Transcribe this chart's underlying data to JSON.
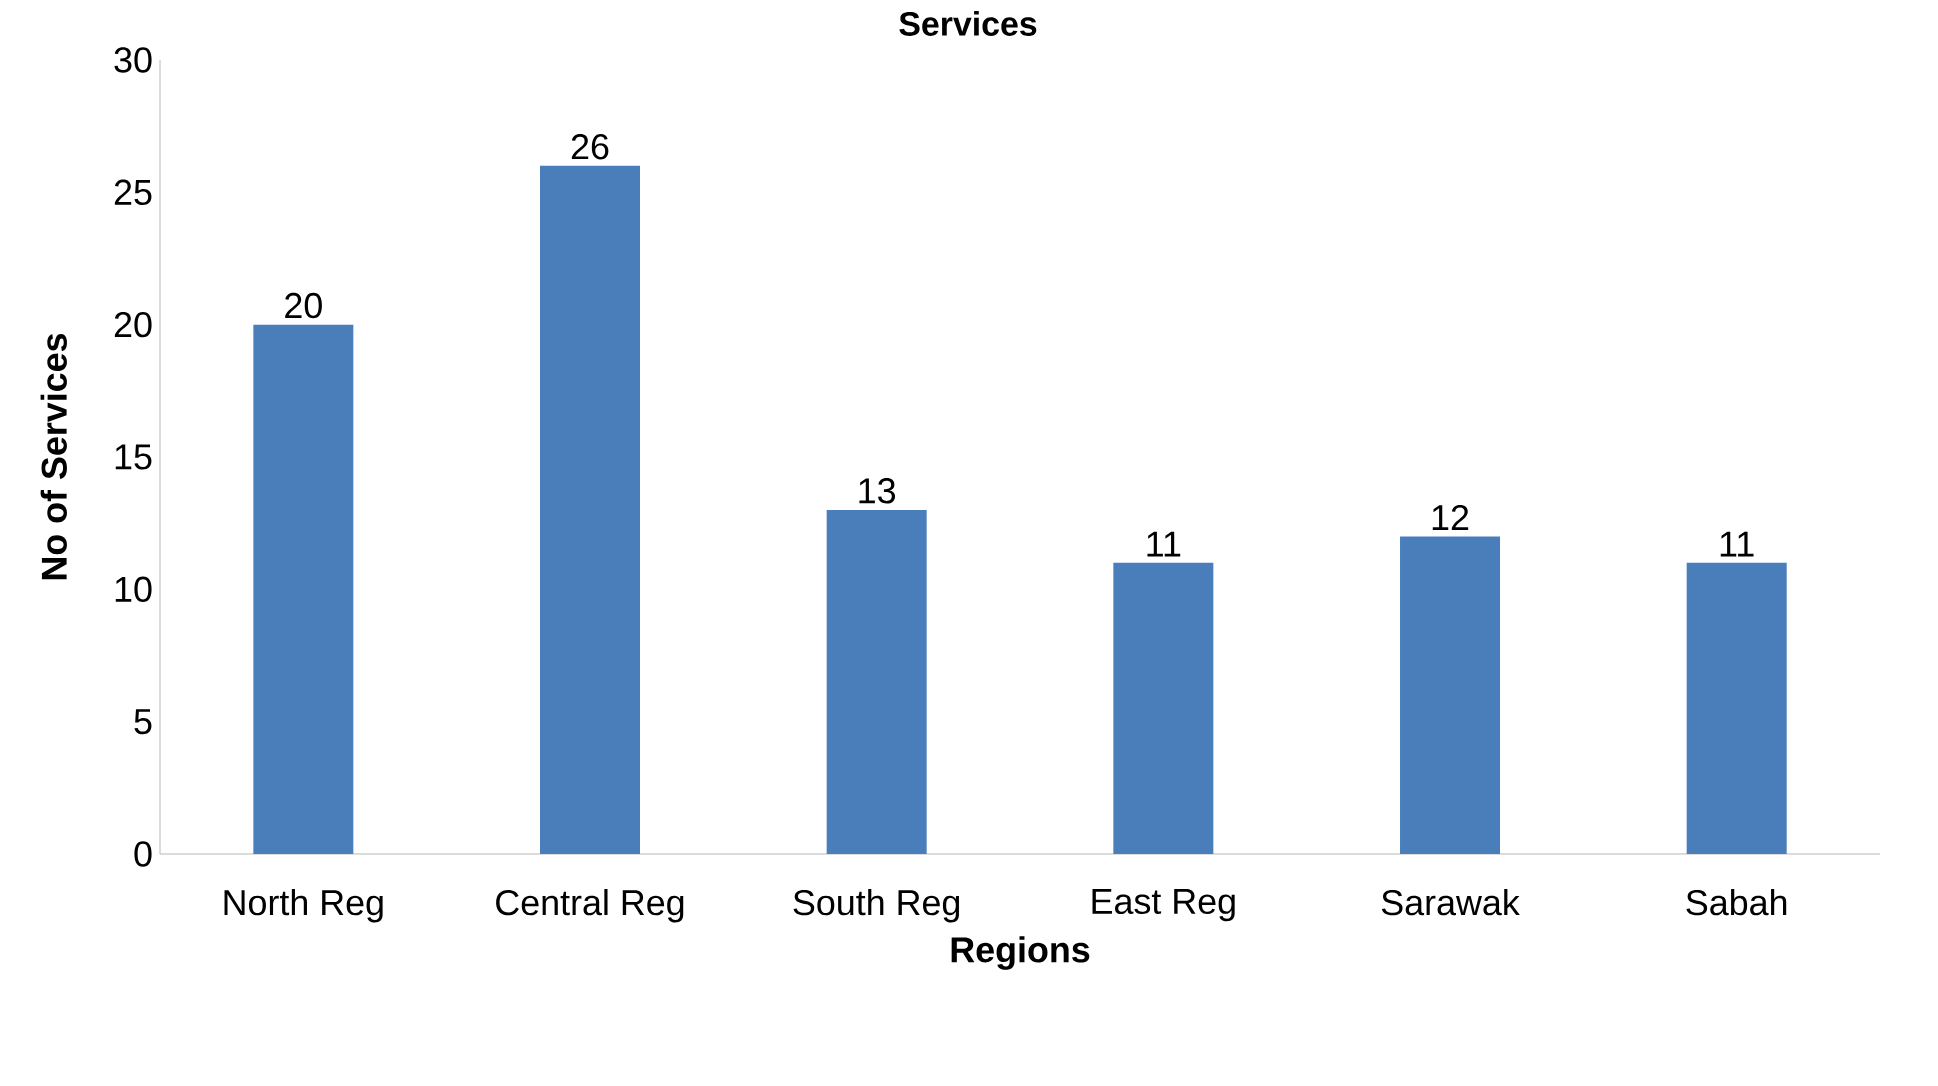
{
  "chart_data": {
    "type": "bar",
    "title": "Services",
    "xlabel": "Regions",
    "ylabel": "No of Services",
    "categories": [
      "North Reg",
      "Central Reg",
      "South Reg",
      "East Reg",
      "Sarawak",
      "Sabah"
    ],
    "values": [
      20,
      26,
      13,
      11,
      12,
      11
    ],
    "color": "#4a7ebb",
    "ylim": [
      0,
      30
    ],
    "yticks": [
      0,
      5,
      10,
      15,
      20,
      25,
      30
    ],
    "data_labels": true
  }
}
